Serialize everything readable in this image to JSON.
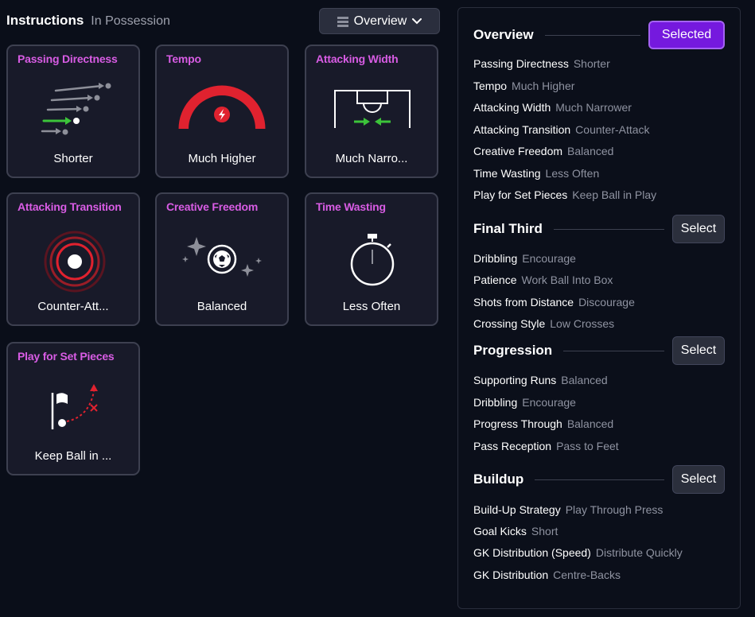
{
  "header": {
    "title": "Instructions",
    "subtitle": "In Possession"
  },
  "dropdown": {
    "label": "Overview"
  },
  "cards": [
    {
      "title": "Passing Directness",
      "value": "Shorter"
    },
    {
      "title": "Tempo",
      "value": "Much Higher"
    },
    {
      "title": "Attacking Width",
      "value": "Much Narro..."
    },
    {
      "title": "Attacking Transition",
      "value": "Counter-Att..."
    },
    {
      "title": "Creative Freedom",
      "value": "Balanced"
    },
    {
      "title": "Time Wasting",
      "value": "Less Often"
    },
    {
      "title": "Play for Set Pieces",
      "value": "Keep Ball in ..."
    }
  ],
  "panel": {
    "sections": [
      {
        "title": "Overview",
        "button": "Selected",
        "rows": [
          {
            "k": "Passing Directness",
            "v": "Shorter"
          },
          {
            "k": "Tempo",
            "v": "Much Higher"
          },
          {
            "k": "Attacking Width",
            "v": "Much Narrower"
          },
          {
            "k": "Attacking Transition",
            "v": "Counter-Attack"
          },
          {
            "k": "Creative Freedom",
            "v": "Balanced"
          },
          {
            "k": "Time Wasting",
            "v": "Less Often"
          },
          {
            "k": "Play for Set Pieces",
            "v": "Keep Ball in Play"
          }
        ]
      },
      {
        "title": "Final Third",
        "button": "Select",
        "rows": [
          {
            "k": "Dribbling",
            "v": "Encourage"
          },
          {
            "k": "Patience",
            "v": "Work Ball Into Box"
          },
          {
            "k": "Shots from Distance",
            "v": "Discourage"
          },
          {
            "k": "Crossing Style",
            "v": "Low Crosses"
          }
        ]
      },
      {
        "title": "Progression",
        "button": "Select",
        "rows": [
          {
            "k": "Supporting Runs",
            "v": "Balanced"
          },
          {
            "k": "Dribbling",
            "v": "Encourage"
          },
          {
            "k": "Progress Through",
            "v": "Balanced"
          },
          {
            "k": "Pass Reception",
            "v": "Pass to Feet"
          }
        ]
      },
      {
        "title": "Buildup",
        "button": "Select",
        "rows": [
          {
            "k": "Build-Up Strategy",
            "v": "Play Through Press"
          },
          {
            "k": "Goal Kicks",
            "v": "Short"
          },
          {
            "k": "GK Distribution (Speed)",
            "v": "Distribute Quickly"
          },
          {
            "k": "GK Distribution",
            "v": "Centre-Backs"
          }
        ]
      }
    ]
  },
  "colors": {
    "accent": "#d85ce4",
    "selected": "#7519de",
    "danger": "#e0222f",
    "success": "#3cc43a"
  },
  "icons": [
    "list-icon",
    "chevron-down-icon",
    "passing-arrows-icon",
    "tempo-gauge-icon",
    "pitch-width-icon",
    "transition-rings-icon",
    "sparkle-ball-icon",
    "stopwatch-icon",
    "corner-flag-icon"
  ]
}
